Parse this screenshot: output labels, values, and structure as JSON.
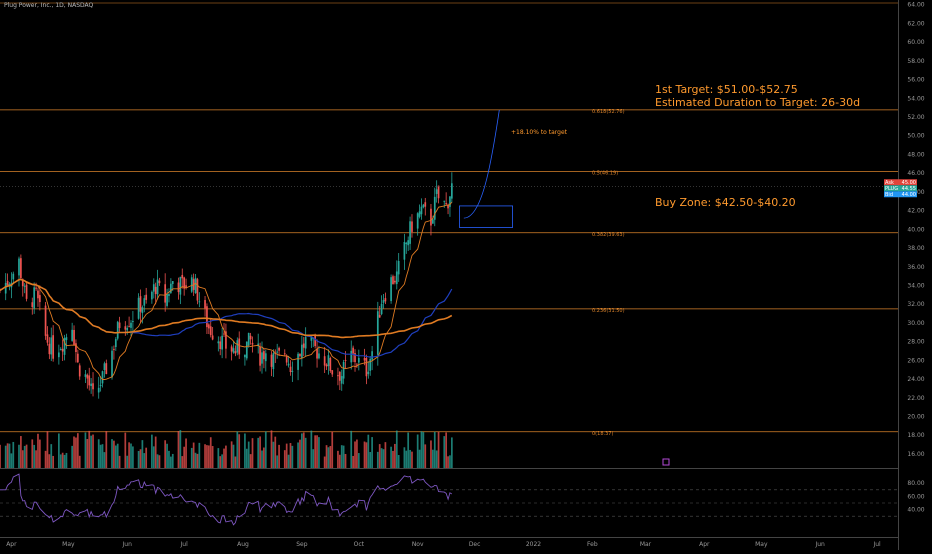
{
  "header": {
    "symbol_line": "Plug Power, Inc., 1D, NASDAQ"
  },
  "colors": {
    "background": "#000000",
    "bull": "#26a69a",
    "bear": "#ef5350",
    "fib_line": "#d9822b",
    "ma_orange": "#e07b22",
    "ma_blue": "#1f3fbf",
    "ma_white": "#e8e8e8",
    "annotation": "#ff9a2e",
    "buy_box": "#2962ff",
    "projection": "#2962ff"
  },
  "annotations": {
    "target_line1": "1st Target: $51.00-$52.75",
    "target_line2": "Estimated Duration to Target: 26-30d",
    "buy_zone": "Buy Zone: $42.50-$40.20",
    "pct_to_target": "+18.10% to target"
  },
  "price_tags": {
    "ask": {
      "label": "Ask",
      "value": "45.00"
    },
    "last": {
      "label": "PLUG",
      "value": "44.55"
    },
    "bid": {
      "label": "Bid",
      "value": "44.00"
    }
  },
  "rsi_header_icon": "indicator-icon",
  "chart_data": {
    "type": "candlestick",
    "title": "Plug Power, Inc., 1D, NASDAQ",
    "ylim": [
      14.5,
      64.5
    ],
    "y_ticks": [
      16,
      18,
      20,
      22,
      24,
      26,
      28,
      30,
      32,
      34,
      36,
      38,
      40,
      42,
      44,
      46,
      48,
      50,
      52,
      54,
      56,
      58,
      60,
      62,
      64
    ],
    "x_ticks": [
      "Apr",
      "May",
      "Jun",
      "Jul",
      "Aug",
      "Sep",
      "Oct",
      "Nov",
      "Dec",
      "2022",
      "Feb",
      "Mar",
      "Apr",
      "May",
      "Jun",
      "Jul"
    ],
    "x_tick_dates": [
      "2021-04-01",
      "2021-05-01",
      "2021-06-01",
      "2021-07-01",
      "2021-08-01",
      "2021-09-01",
      "2021-10-01",
      "2021-11-01",
      "2021-12-01",
      "2022-01-01",
      "2022-02-01",
      "2022-03-01",
      "2022-04-01",
      "2022-05-01",
      "2022-06-01",
      "2022-07-01"
    ],
    "x_range": [
      "2021-03-26",
      "2022-07-12"
    ],
    "fib_levels": [
      {
        "ratio": "0",
        "label": "0(18.37)",
        "price": 18.37
      },
      {
        "ratio": "0.236",
        "label": "0.236(31.50)",
        "price": 31.5
      },
      {
        "ratio": "0.382",
        "label": "0.382(39.63)",
        "price": 39.63
      },
      {
        "ratio": "0.5",
        "label": "0.5(46.19)",
        "price": 46.19
      },
      {
        "ratio": "0.618",
        "label": "0.618(52.76)",
        "price": 52.76
      }
    ],
    "buy_zone": {
      "low": 40.2,
      "high": 42.5,
      "from": "2021-11-23",
      "to": "2021-12-21"
    },
    "projection_target": {
      "date": "2021-12-14",
      "price": 52.76
    },
    "closes": [
      {
        "date": "2021-03-26",
        "close": 33.5
      },
      {
        "date": "2021-04-01",
        "close": 35.0
      },
      {
        "date": "2021-04-05",
        "close": 36.5
      },
      {
        "date": "2021-04-09",
        "close": 32.0
      },
      {
        "date": "2021-04-14",
        "close": 33.0
      },
      {
        "date": "2021-04-19",
        "close": 28.5
      },
      {
        "date": "2021-04-23",
        "close": 27.0
      },
      {
        "date": "2021-04-28",
        "close": 28.0
      },
      {
        "date": "2021-05-03",
        "close": 30.0
      },
      {
        "date": "2021-05-06",
        "close": 25.5
      },
      {
        "date": "2021-05-11",
        "close": 24.0
      },
      {
        "date": "2021-05-14",
        "close": 22.0
      },
      {
        "date": "2021-05-19",
        "close": 24.0
      },
      {
        "date": "2021-05-24",
        "close": 27.0
      },
      {
        "date": "2021-05-28",
        "close": 30.0
      },
      {
        "date": "2021-06-03",
        "close": 30.5
      },
      {
        "date": "2021-06-08",
        "close": 32.0
      },
      {
        "date": "2021-06-11",
        "close": 32.0
      },
      {
        "date": "2021-06-16",
        "close": 34.0
      },
      {
        "date": "2021-06-21",
        "close": 32.5
      },
      {
        "date": "2021-06-25",
        "close": 34.5
      },
      {
        "date": "2021-06-30",
        "close": 34.0
      },
      {
        "date": "2021-07-06",
        "close": 34.5
      },
      {
        "date": "2021-07-09",
        "close": 32.5
      },
      {
        "date": "2021-07-14",
        "close": 29.5
      },
      {
        "date": "2021-07-19",
        "close": 28.5
      },
      {
        "date": "2021-07-23",
        "close": 27.5
      },
      {
        "date": "2021-07-28",
        "close": 27.0
      },
      {
        "date": "2021-08-02",
        "close": 27.5
      },
      {
        "date": "2021-08-05",
        "close": 28.0
      },
      {
        "date": "2021-08-10",
        "close": 26.5
      },
      {
        "date": "2021-08-13",
        "close": 27.0
      },
      {
        "date": "2021-08-18",
        "close": 26.0
      },
      {
        "date": "2021-08-23",
        "close": 27.0
      },
      {
        "date": "2021-08-26",
        "close": 25.5
      },
      {
        "date": "2021-08-31",
        "close": 27.0
      },
      {
        "date": "2021-09-03",
        "close": 28.0
      },
      {
        "date": "2021-09-09",
        "close": 27.0
      },
      {
        "date": "2021-09-14",
        "close": 26.0
      },
      {
        "date": "2021-09-17",
        "close": 25.0
      },
      {
        "date": "2021-09-22",
        "close": 24.5
      },
      {
        "date": "2021-09-27",
        "close": 26.5
      },
      {
        "date": "2021-09-30",
        "close": 26.0
      },
      {
        "date": "2021-10-05",
        "close": 25.0
      },
      {
        "date": "2021-10-08",
        "close": 27.0
      },
      {
        "date": "2021-10-13",
        "close": 32.5
      },
      {
        "date": "2021-10-18",
        "close": 34.5
      },
      {
        "date": "2021-10-21",
        "close": 35.0
      },
      {
        "date": "2021-10-26",
        "close": 38.5
      },
      {
        "date": "2021-10-29",
        "close": 40.5
      },
      {
        "date": "2021-11-03",
        "close": 42.0
      },
      {
        "date": "2021-11-08",
        "close": 41.0
      },
      {
        "date": "2021-11-11",
        "close": 43.5
      },
      {
        "date": "2021-11-16",
        "close": 42.5
      },
      {
        "date": "2021-11-19",
        "close": 44.55
      }
    ]
  }
}
